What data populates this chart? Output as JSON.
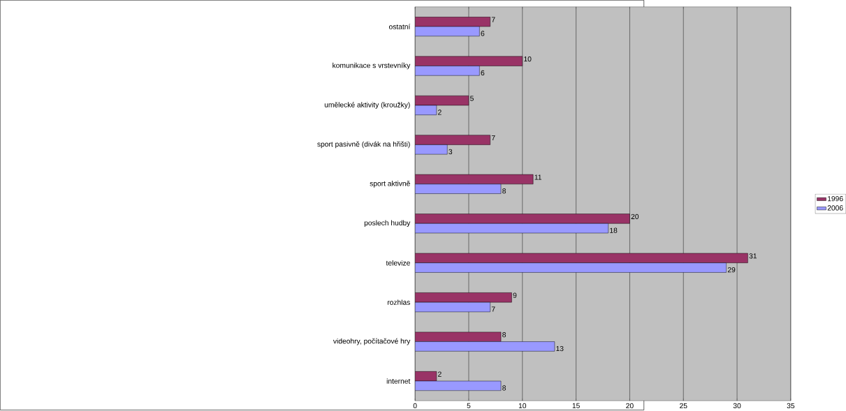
{
  "chart_data": {
    "type": "bar",
    "orientation": "horizontal",
    "categories": [
      "ostatní",
      "komunikace s vrstevníky",
      "umělecké aktivity (kroužky)",
      "sport pasivně (divák na hřišti)",
      "sport aktivně",
      "poslech hudby",
      "televize",
      "rozhlas",
      "videohry, počítačové hry",
      "internet"
    ],
    "series": [
      {
        "name": "1996",
        "color": "#993366",
        "values": [
          7,
          10,
          5,
          7,
          11,
          20,
          31,
          9,
          8,
          2
        ]
      },
      {
        "name": "2006",
        "color": "#9999ff",
        "values": [
          6,
          6,
          2,
          3,
          8,
          18,
          29,
          7,
          13,
          8
        ]
      }
    ],
    "xlim": [
      0,
      35
    ],
    "xticks": [
      0,
      5,
      10,
      15,
      20,
      25,
      30,
      35
    ],
    "grid": "x",
    "legend": "right",
    "data_labels": true
  }
}
